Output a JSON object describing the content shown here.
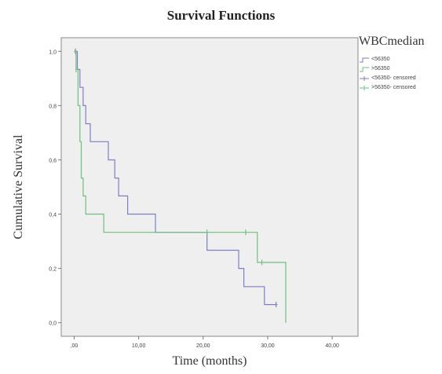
{
  "chart_data": {
    "type": "line",
    "subtype": "kaplan-meier step",
    "title": "Survival Functions",
    "xlabel": "Time (months)",
    "ylabel": "Cumulative Survival",
    "xlim": [
      -2,
      44
    ],
    "ylim": [
      -0.05,
      1.05
    ],
    "x_ticks": [
      0,
      10,
      20,
      30,
      40
    ],
    "x_tick_labels": [
      ",00",
      "10,00",
      "20,00",
      "30,00",
      "40,00"
    ],
    "y_ticks": [
      0,
      0.2,
      0.4,
      0.6,
      0.8,
      1.0
    ],
    "y_tick_labels": [
      "0,0",
      "0,2",
      "0,4",
      "0,6",
      "0,8",
      "1,0"
    ],
    "grid": false,
    "legend_title": "WBCmedian",
    "legend_position": "right",
    "plot_background": "#efefef",
    "series": [
      {
        "name": "<56350",
        "color": "#7b80c4",
        "steps": [
          [
            0,
            1.0
          ],
          [
            0.5,
            0.933
          ],
          [
            0.9,
            0.867
          ],
          [
            1.4,
            0.8
          ],
          [
            1.8,
            0.733
          ],
          [
            2.5,
            0.667
          ],
          [
            5.3,
            0.6
          ],
          [
            6.3,
            0.533
          ],
          [
            6.9,
            0.467
          ],
          [
            8.3,
            0.4
          ],
          [
            12.6,
            0.333
          ],
          [
            20.6,
            0.267
          ],
          [
            25.5,
            0.2
          ],
          [
            26.3,
            0.133
          ],
          [
            29.5,
            0.067
          ],
          [
            31.5,
            0.067
          ]
        ],
        "censored": [
          [
            0.2,
            1.0
          ],
          [
            31.3,
            0.067
          ]
        ]
      },
      {
        "name": ">56350",
        "color": "#6fbf7f",
        "steps": [
          [
            0,
            1.0
          ],
          [
            0.3,
            0.933
          ],
          [
            0.6,
            0.8
          ],
          [
            0.9,
            0.667
          ],
          [
            1.1,
            0.533
          ],
          [
            1.4,
            0.467
          ],
          [
            1.8,
            0.4
          ],
          [
            4.6,
            0.333
          ],
          [
            28.4,
            0.222
          ],
          [
            32.8,
            0.0
          ]
        ],
        "censored": [
          [
            0.3,
            0.933
          ],
          [
            20.6,
            0.333
          ],
          [
            26.6,
            0.333
          ],
          [
            29.1,
            0.222
          ]
        ]
      }
    ],
    "legend_labels": [
      "<56350",
      ">56350",
      "<56350- censored",
      ">56350- censored"
    ]
  }
}
